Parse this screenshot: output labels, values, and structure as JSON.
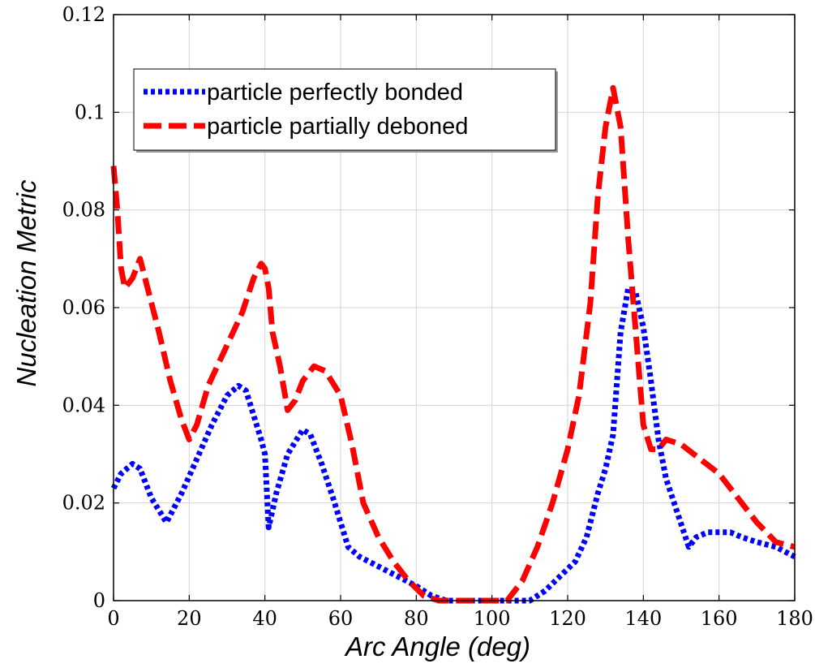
{
  "chart_data": {
    "type": "line",
    "title": "",
    "xlabel": "Arc Angle (deg)",
    "ylabel": "Nucleation Metric",
    "xlim": [
      0,
      180
    ],
    "ylim": [
      0,
      0.12
    ],
    "xticks": [
      0,
      20,
      40,
      60,
      80,
      100,
      120,
      140,
      160,
      180
    ],
    "xtick_labels": [
      "0",
      "20",
      "40",
      "60",
      "80",
      "100",
      "120",
      "140",
      "160",
      "180"
    ],
    "yticks": [
      0,
      0.02,
      0.04,
      0.06,
      0.08,
      0.1,
      0.12
    ],
    "ytick_labels": [
      "0",
      "0.02",
      "0.04",
      "0.06",
      "0.08",
      "0.1",
      "0.12"
    ],
    "grid": true,
    "legend_position": "top-left",
    "series": [
      {
        "name": "particle perfectly bonded",
        "color": "#0000ff",
        "style": "dotted",
        "x": [
          0,
          2,
          5,
          7,
          10,
          14,
          18,
          22,
          26,
          30,
          33,
          35,
          37,
          39,
          40,
          41,
          43,
          46,
          50,
          52,
          55,
          58,
          60,
          62,
          65,
          70,
          75,
          80,
          84,
          88,
          92,
          96,
          100,
          104,
          108,
          110,
          114,
          118,
          122,
          125,
          128,
          130,
          132,
          134,
          136,
          138,
          140,
          142,
          144,
          146,
          149,
          152,
          154,
          157,
          160,
          163,
          166,
          170,
          175,
          180
        ],
        "y": [
          0.023,
          0.026,
          0.028,
          0.027,
          0.021,
          0.016,
          0.022,
          0.029,
          0.036,
          0.042,
          0.044,
          0.043,
          0.038,
          0.033,
          0.03,
          0.015,
          0.022,
          0.03,
          0.035,
          0.034,
          0.028,
          0.021,
          0.016,
          0.011,
          0.009,
          0.007,
          0.005,
          0.003,
          0.001,
          0.0,
          0.0,
          0.0,
          0.0,
          0.0,
          0.0,
          0.0,
          0.002,
          0.005,
          0.008,
          0.013,
          0.022,
          0.027,
          0.034,
          0.055,
          0.064,
          0.063,
          0.056,
          0.045,
          0.033,
          0.025,
          0.018,
          0.011,
          0.013,
          0.014,
          0.014,
          0.014,
          0.013,
          0.012,
          0.011,
          0.009
        ]
      },
      {
        "name": "particle partially deboned",
        "color": "#ff0000",
        "style": "dashed",
        "x": [
          0,
          1,
          2,
          3,
          5,
          7,
          9,
          12,
          15,
          18,
          20,
          22,
          25,
          28,
          31,
          34,
          37,
          39,
          40,
          41,
          42,
          44,
          46,
          48,
          50,
          53,
          56,
          60,
          63,
          66,
          70,
          74,
          78,
          82,
          86,
          90,
          95,
          100,
          104,
          108,
          112,
          116,
          120,
          123,
          126,
          128,
          130,
          132,
          134,
          136,
          138,
          140,
          142,
          144,
          146,
          150,
          155,
          160,
          165,
          170,
          175,
          180
        ],
        "y": [
          0.089,
          0.08,
          0.068,
          0.064,
          0.066,
          0.07,
          0.064,
          0.055,
          0.045,
          0.037,
          0.033,
          0.036,
          0.044,
          0.049,
          0.054,
          0.059,
          0.066,
          0.069,
          0.068,
          0.064,
          0.055,
          0.048,
          0.039,
          0.041,
          0.045,
          0.048,
          0.047,
          0.042,
          0.032,
          0.02,
          0.013,
          0.008,
          0.004,
          0.001,
          0.0,
          0.0,
          0.0,
          0.0,
          0.0,
          0.004,
          0.011,
          0.02,
          0.031,
          0.042,
          0.061,
          0.083,
          0.097,
          0.105,
          0.097,
          0.074,
          0.055,
          0.036,
          0.031,
          0.031,
          0.033,
          0.032,
          0.029,
          0.026,
          0.021,
          0.016,
          0.012,
          0.011
        ]
      }
    ]
  }
}
